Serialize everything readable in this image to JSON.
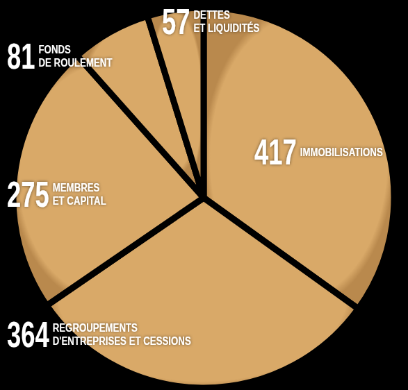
{
  "chart_data": {
    "type": "pie",
    "categories": [
      "IMMOBILISATIONS",
      "REGROUPEMENTS D'ENTREPRISES ET CESSIONS",
      "MEMBRES ET CAPITAL",
      "FONDS DE ROULEMENT",
      "DETTES ET LIQUIDITÉS"
    ],
    "values": [
      417,
      364,
      275,
      81,
      57
    ],
    "color": "#d9a968",
    "data_labels": true
  }
}
